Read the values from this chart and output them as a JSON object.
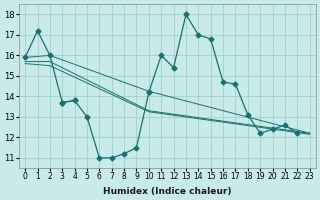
{
  "xlabel": "Humidex (Indice chaleur)",
  "bg_color": "#c8eae8",
  "grid_color": "#a0d0cc",
  "line_color": "#1a7070",
  "xlim": [
    -0.5,
    23.5
  ],
  "ylim": [
    10.5,
    18.5
  ],
  "yticks": [
    11,
    12,
    13,
    14,
    15,
    16,
    17,
    18
  ],
  "xtick_labels": [
    "0",
    "1",
    "2",
    "3",
    "4",
    "5",
    "6",
    "7",
    "8",
    "9",
    "10",
    "11",
    "12",
    "13",
    "14",
    "15",
    "16",
    "17",
    "18",
    "19",
    "20",
    "21",
    "22",
    "23"
  ],
  "line1_x": [
    0,
    1,
    2,
    3,
    4,
    5,
    6,
    7,
    8,
    9,
    10,
    11,
    12,
    13,
    14,
    15,
    16,
    17,
    18,
    19,
    20,
    21,
    22,
    23
  ],
  "line1_y": [
    15.9,
    17.2,
    16.0,
    13.7,
    13.8,
    null,
    null,
    null,
    null,
    null,
    14.2,
    16.0,
    15.4,
    18.0,
    17.0,
    16.8,
    14.7,
    14.6,
    13.1,
    12.2,
    12.4,
    12.6,
    12.2,
    null
  ],
  "line2_x": [
    0,
    1,
    2,
    3,
    4,
    5,
    6,
    7,
    8,
    9,
    10,
    11,
    12,
    13,
    14,
    15,
    16,
    17,
    18,
    19,
    20,
    21,
    22,
    23
  ],
  "line2_y": [
    null,
    null,
    null,
    13.7,
    13.8,
    13.0,
    11.0,
    11.0,
    11.2,
    11.5,
    14.2,
    null,
    null,
    null,
    null,
    null,
    null,
    null,
    null,
    null,
    null,
    null,
    null,
    null
  ],
  "line3_x": [
    0,
    2,
    10,
    23
  ],
  "line3_y": [
    15.9,
    16.0,
    14.25,
    12.2
  ],
  "line4_x": [
    0,
    2,
    10,
    23
  ],
  "line4_y": [
    15.7,
    15.7,
    13.3,
    12.2
  ],
  "line5_x": [
    0,
    2,
    10,
    23
  ],
  "line5_y": [
    15.6,
    15.5,
    13.25,
    12.15
  ]
}
